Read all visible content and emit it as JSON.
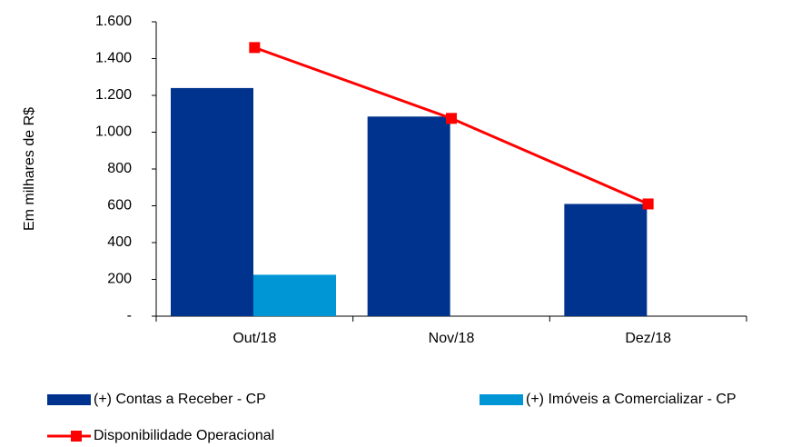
{
  "chart_data": {
    "type": "bar",
    "y_label": "Em milhares de R$",
    "categories": [
      "Out/18",
      "Nov/18",
      "Dez/18"
    ],
    "series": [
      {
        "name": "(+) Contas a Receber - CP",
        "color": "#00338d",
        "type": "bar",
        "values": [
          1240,
          1085,
          610
        ]
      },
      {
        "name": "(+) Imóveis a Comercializar - CP",
        "color": "#0096d6",
        "type": "bar",
        "values": [
          225,
          0,
          0
        ]
      },
      {
        "name": "Disponibilidade Operacional",
        "color": "#ff0000",
        "type": "line",
        "values": [
          1460,
          1075,
          610
        ]
      }
    ],
    "ylim": [
      0,
      1600
    ],
    "yticks": [
      {
        "value": 0,
        "label": "-"
      },
      200,
      400,
      600,
      800,
      {
        "value": 1000,
        "label": "1.000"
      },
      {
        "value": 1200,
        "label": "1.200"
      },
      {
        "value": 1400,
        "label": "1.400"
      },
      {
        "value": 1600,
        "label": "1.600"
      }
    ]
  }
}
